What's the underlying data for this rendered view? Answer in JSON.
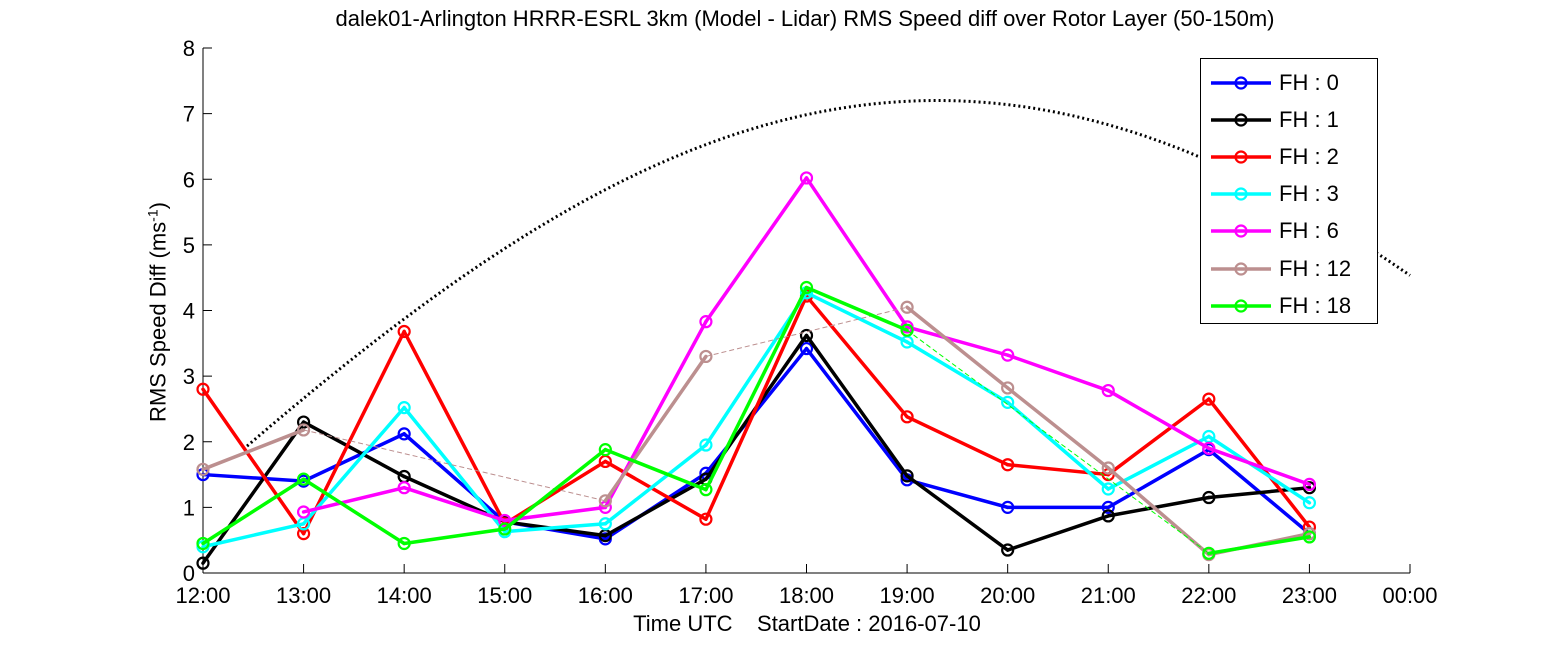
{
  "chart_data": {
    "type": "line",
    "title": "dalek01-Arlington HRRR-ESRL 3km (Model - Lidar) RMS Speed diff over Rotor Layer (50-150m)",
    "xlabel": "Time UTC    StartDate : 2016-07-10",
    "ylabel_main": "RMS Speed Diff (ms",
    "ylabel_sup": "-1",
    "ylabel_close": ")",
    "x_ticks": [
      "12:00",
      "13:00",
      "14:00",
      "15:00",
      "16:00",
      "17:00",
      "18:00",
      "19:00",
      "20:00",
      "21:00",
      "22:00",
      "23:00",
      "00:00"
    ],
    "y_ticks": [
      "0",
      "1",
      "2",
      "3",
      "4",
      "5",
      "6",
      "7",
      "8"
    ],
    "ylim": [
      0,
      8
    ],
    "grid": false,
    "legend_position": "top-right",
    "series": [
      {
        "name": "FH : 0",
        "color": "#0000ff",
        "values": [
          1.5,
          1.4,
          2.12,
          0.78,
          0.52,
          1.52,
          3.42,
          1.42,
          1.0,
          1.0,
          1.88,
          0.6
        ]
      },
      {
        "name": "FH : 1",
        "color": "#000000",
        "values": [
          0.15,
          2.3,
          1.47,
          0.78,
          0.57,
          1.43,
          3.62,
          1.48,
          0.35,
          0.87,
          1.15,
          1.3
        ]
      },
      {
        "name": "FH : 2",
        "color": "#ff0000",
        "values": [
          2.8,
          0.6,
          3.68,
          0.75,
          1.7,
          0.82,
          4.22,
          2.38,
          1.65,
          1.5,
          2.65,
          0.7
        ]
      },
      {
        "name": "FH : 3",
        "color": "#00ffff",
        "values": [
          0.4,
          0.75,
          2.52,
          0.63,
          0.75,
          1.95,
          4.27,
          3.52,
          2.6,
          1.28,
          2.08,
          1.07
        ]
      },
      {
        "name": "FH : 6",
        "color": "#ff00ff",
        "values": [
          null,
          0.93,
          1.3,
          0.8,
          1.0,
          3.83,
          6.02,
          3.75,
          3.32,
          2.78,
          1.9,
          1.35
        ]
      },
      {
        "name": "FH : 12",
        "color": "#bc8f8f",
        "values": [
          1.58,
          2.18,
          null,
          null,
          1.1,
          3.3,
          null,
          4.05,
          2.82,
          1.6,
          0.28,
          0.6
        ]
      },
      {
        "name": "FH : 18",
        "color": "#00ff00",
        "values": [
          0.45,
          1.43,
          0.45,
          0.67,
          1.88,
          1.27,
          4.35,
          3.7,
          null,
          null,
          0.3,
          0.55
        ]
      }
    ],
    "dotted_curve": {
      "color": "#000000",
      "peak_value": 7.2
    }
  }
}
